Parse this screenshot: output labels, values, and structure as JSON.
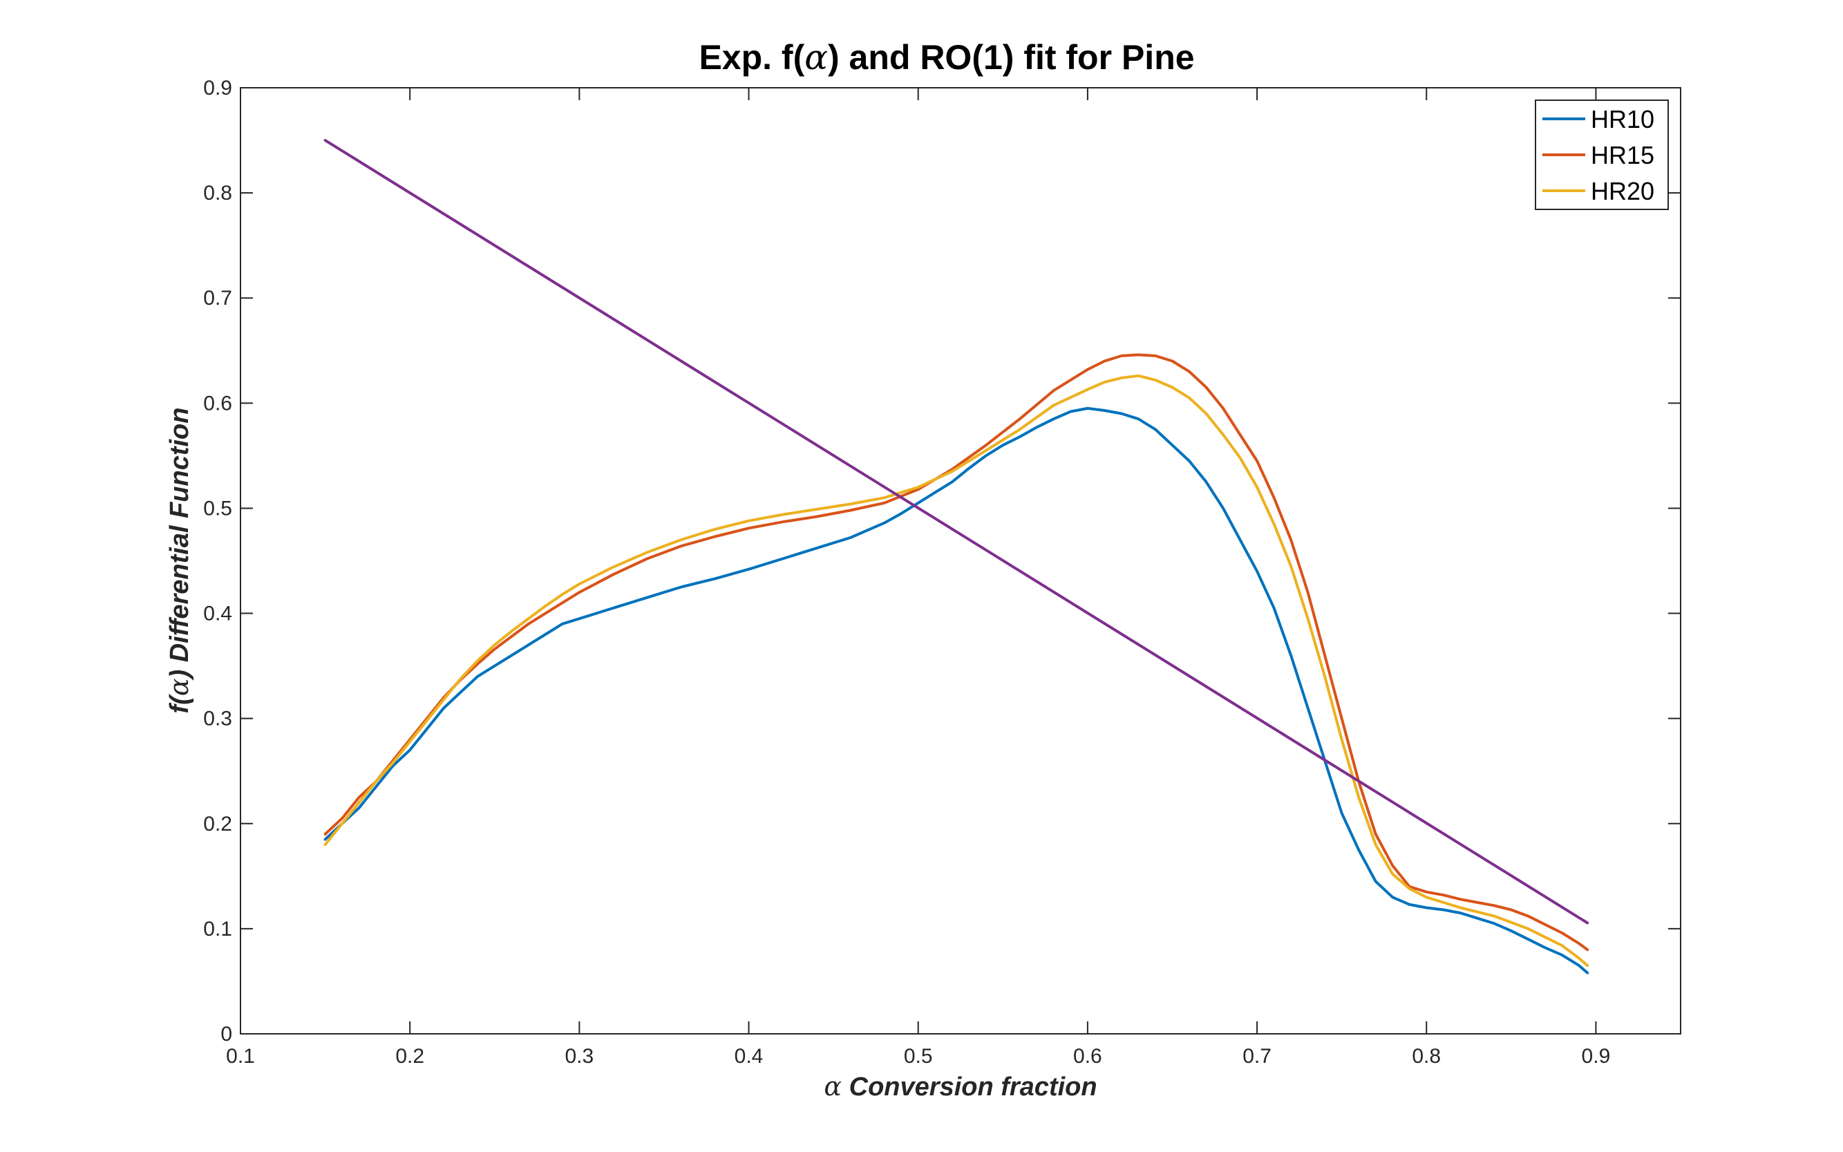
{
  "chart_data": {
    "type": "line",
    "title": {
      "prefix": "Exp. f(",
      "symbol": "α",
      "suffix": ") and RO(1) fit for Pine"
    },
    "xlabel": {
      "symbol": "α",
      "text": "Conversion fraction"
    },
    "ylabel": {
      "prefix": "f(",
      "symbol": "α",
      "suffix": ")",
      "text": "Differential Function"
    },
    "xlim": [
      0.1,
      0.95
    ],
    "ylim": [
      0,
      0.9
    ],
    "xticks": [
      "0.1",
      "0.2",
      "0.3",
      "0.4",
      "0.5",
      "0.6",
      "0.7",
      "0.8",
      "0.9"
    ],
    "yticks": [
      "0",
      "0.1",
      "0.2",
      "0.3",
      "0.4",
      "0.5",
      "0.6",
      "0.7",
      "0.8",
      "0.9"
    ],
    "grid": false,
    "legend_position": "top-right",
    "series": [
      {
        "name": "HR10",
        "color": "#0072BD",
        "x": [
          0.15,
          0.16,
          0.17,
          0.18,
          0.19,
          0.2,
          0.21,
          0.22,
          0.23,
          0.24,
          0.25,
          0.26,
          0.27,
          0.28,
          0.29,
          0.3,
          0.32,
          0.34,
          0.36,
          0.38,
          0.4,
          0.42,
          0.44,
          0.46,
          0.48,
          0.49,
          0.5,
          0.51,
          0.52,
          0.53,
          0.54,
          0.55,
          0.56,
          0.57,
          0.58,
          0.59,
          0.6,
          0.61,
          0.62,
          0.63,
          0.64,
          0.65,
          0.66,
          0.67,
          0.68,
          0.69,
          0.7,
          0.71,
          0.72,
          0.73,
          0.74,
          0.75,
          0.76,
          0.77,
          0.78,
          0.79,
          0.8,
          0.81,
          0.82,
          0.83,
          0.84,
          0.85,
          0.86,
          0.87,
          0.88,
          0.89,
          0.895
        ],
        "y": [
          0.185,
          0.2,
          0.215,
          0.235,
          0.255,
          0.27,
          0.29,
          0.31,
          0.325,
          0.34,
          0.35,
          0.36,
          0.37,
          0.38,
          0.39,
          0.395,
          0.405,
          0.415,
          0.425,
          0.433,
          0.442,
          0.452,
          0.462,
          0.472,
          0.486,
          0.495,
          0.505,
          0.515,
          0.525,
          0.538,
          0.55,
          0.56,
          0.568,
          0.577,
          0.585,
          0.592,
          0.595,
          0.593,
          0.59,
          0.585,
          0.575,
          0.56,
          0.545,
          0.525,
          0.5,
          0.47,
          0.44,
          0.405,
          0.36,
          0.31,
          0.26,
          0.21,
          0.175,
          0.145,
          0.13,
          0.123,
          0.12,
          0.118,
          0.115,
          0.11,
          0.105,
          0.098,
          0.09,
          0.082,
          0.075,
          0.065,
          0.058
        ]
      },
      {
        "name": "HR15",
        "color": "#D95319",
        "x": [
          0.15,
          0.16,
          0.17,
          0.18,
          0.19,
          0.2,
          0.21,
          0.22,
          0.23,
          0.24,
          0.25,
          0.26,
          0.27,
          0.28,
          0.29,
          0.3,
          0.32,
          0.34,
          0.36,
          0.38,
          0.4,
          0.42,
          0.44,
          0.46,
          0.48,
          0.5,
          0.52,
          0.54,
          0.56,
          0.58,
          0.6,
          0.61,
          0.62,
          0.63,
          0.64,
          0.65,
          0.66,
          0.67,
          0.68,
          0.69,
          0.7,
          0.71,
          0.72,
          0.73,
          0.74,
          0.75,
          0.76,
          0.77,
          0.78,
          0.79,
          0.8,
          0.81,
          0.82,
          0.83,
          0.84,
          0.85,
          0.86,
          0.87,
          0.88,
          0.89,
          0.895
        ],
        "y": [
          0.19,
          0.205,
          0.225,
          0.24,
          0.26,
          0.28,
          0.3,
          0.32,
          0.337,
          0.352,
          0.366,
          0.378,
          0.39,
          0.4,
          0.41,
          0.42,
          0.437,
          0.452,
          0.464,
          0.473,
          0.481,
          0.487,
          0.492,
          0.498,
          0.505,
          0.518,
          0.537,
          0.56,
          0.585,
          0.612,
          0.632,
          0.64,
          0.645,
          0.646,
          0.645,
          0.64,
          0.63,
          0.615,
          0.595,
          0.57,
          0.545,
          0.51,
          0.47,
          0.42,
          0.36,
          0.3,
          0.24,
          0.19,
          0.16,
          0.14,
          0.135,
          0.132,
          0.128,
          0.125,
          0.122,
          0.118,
          0.112,
          0.104,
          0.096,
          0.086,
          0.08
        ]
      },
      {
        "name": "HR20",
        "color": "#EDB120",
        "x": [
          0.15,
          0.16,
          0.17,
          0.18,
          0.19,
          0.2,
          0.21,
          0.22,
          0.23,
          0.24,
          0.25,
          0.26,
          0.27,
          0.28,
          0.29,
          0.3,
          0.32,
          0.34,
          0.36,
          0.38,
          0.4,
          0.42,
          0.44,
          0.46,
          0.48,
          0.5,
          0.52,
          0.54,
          0.56,
          0.58,
          0.6,
          0.61,
          0.62,
          0.63,
          0.64,
          0.65,
          0.66,
          0.67,
          0.68,
          0.69,
          0.7,
          0.71,
          0.72,
          0.73,
          0.74,
          0.75,
          0.76,
          0.77,
          0.78,
          0.79,
          0.8,
          0.81,
          0.82,
          0.83,
          0.84,
          0.85,
          0.86,
          0.87,
          0.88,
          0.89,
          0.895
        ],
        "y": [
          0.18,
          0.2,
          0.22,
          0.24,
          0.258,
          0.278,
          0.298,
          0.318,
          0.338,
          0.355,
          0.37,
          0.383,
          0.395,
          0.407,
          0.418,
          0.428,
          0.444,
          0.458,
          0.47,
          0.48,
          0.488,
          0.494,
          0.499,
          0.504,
          0.51,
          0.52,
          0.535,
          0.555,
          0.575,
          0.598,
          0.613,
          0.62,
          0.624,
          0.626,
          0.622,
          0.615,
          0.605,
          0.59,
          0.57,
          0.548,
          0.52,
          0.485,
          0.445,
          0.395,
          0.34,
          0.28,
          0.225,
          0.18,
          0.152,
          0.138,
          0.13,
          0.125,
          0.12,
          0.116,
          0.112,
          0.106,
          0.1,
          0.092,
          0.084,
          0.072,
          0.065
        ]
      },
      {
        "color": "#7E2F8E",
        "x": [
          0.15,
          0.895
        ],
        "y": [
          0.85,
          0.1055
        ]
      }
    ]
  }
}
